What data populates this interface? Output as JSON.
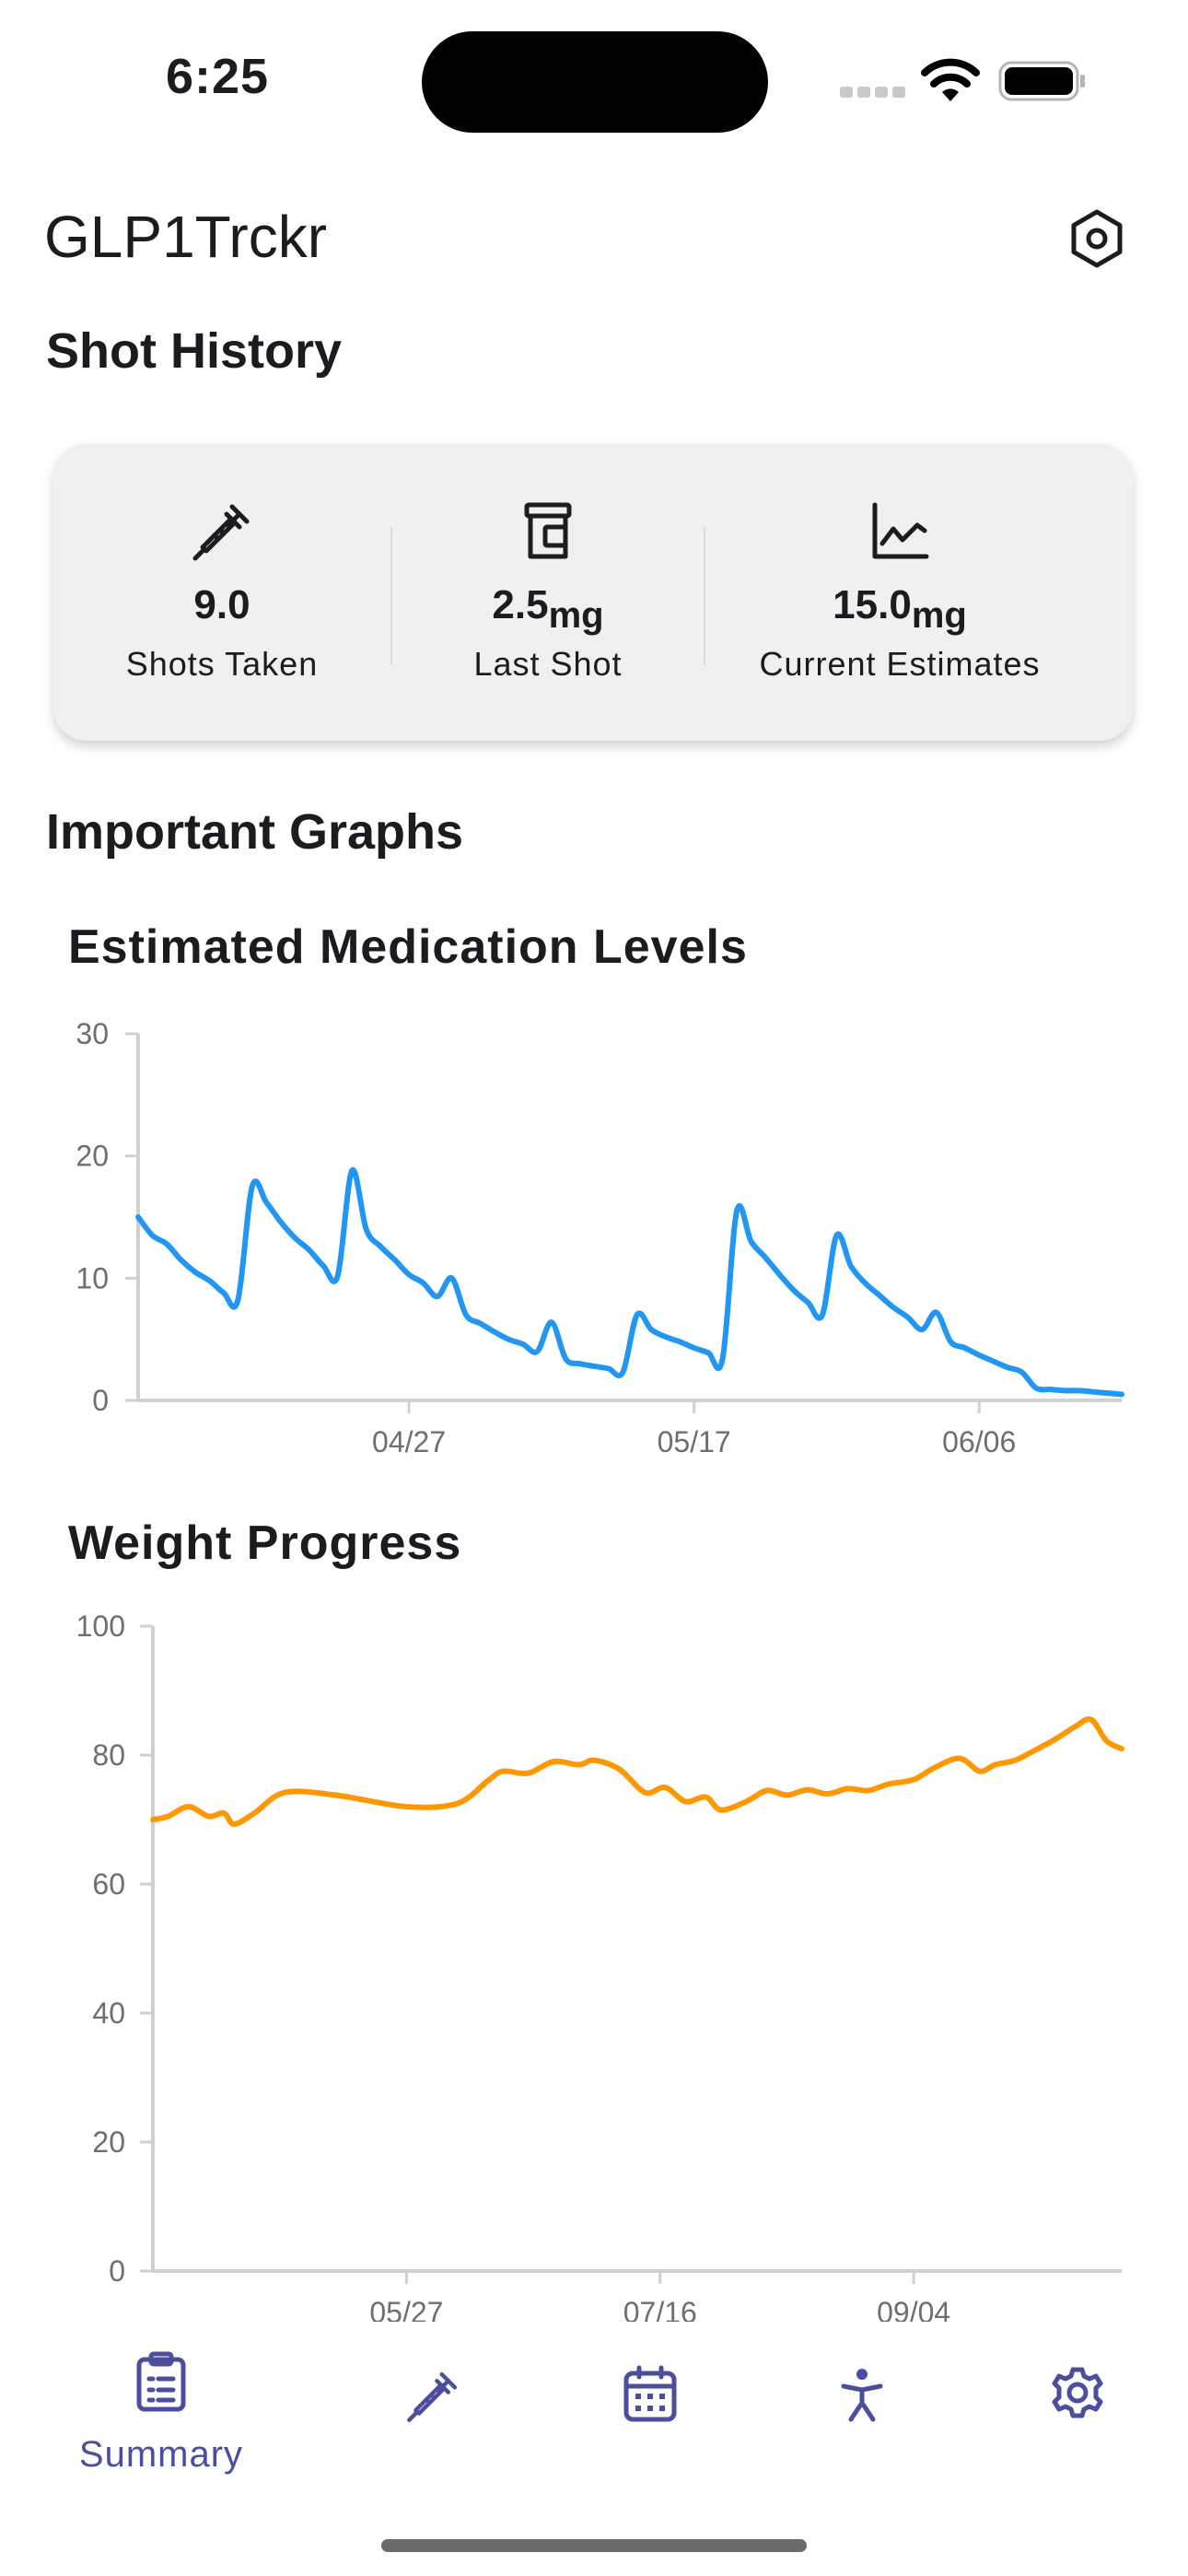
{
  "status_bar": {
    "time": "6:25"
  },
  "app_bar": {
    "title": "GLP1Trckr"
  },
  "shot_history": {
    "title": "Shot History",
    "stats": [
      {
        "icon": "syringe-icon",
        "value": "9.0",
        "unit": "",
        "label": "Shots Taken"
      },
      {
        "icon": "pill-bottle-icon",
        "value": "2.5",
        "unit": "mg",
        "label": "Last Shot"
      },
      {
        "icon": "line-chart-icon",
        "value": "15.0",
        "unit": "mg",
        "label": "Current Estimates"
      }
    ]
  },
  "graphs_section": {
    "title": "Important Graphs"
  },
  "colors": {
    "medication_line": "#2196f3",
    "weight_line": "#ff9800",
    "nav_accent": "#4b4e9c"
  },
  "chart_data": [
    {
      "type": "line",
      "title": "Estimated Medication Levels",
      "x_ticks": [
        "04/27",
        "05/17",
        "06/06"
      ],
      "y_ticks": [
        0,
        10,
        20,
        30
      ],
      "ylim": [
        0,
        30
      ],
      "xlim": [
        "04/08",
        "06/16"
      ],
      "grid": false,
      "series": [
        {
          "color": "#2196f3",
          "points": [
            [
              "04/08",
              15.0
            ],
            [
              "04/09",
              13.5
            ],
            [
              "04/10",
              12.8
            ],
            [
              "04/11",
              11.5
            ],
            [
              "04/12",
              10.5
            ],
            [
              "04/13",
              9.8
            ],
            [
              "04/14",
              8.8
            ],
            [
              "04/15",
              8.2
            ],
            [
              "04/16",
              17.5
            ],
            [
              "04/17",
              16.2
            ],
            [
              "04/18",
              14.6
            ],
            [
              "04/19",
              13.3
            ],
            [
              "04/20",
              12.3
            ],
            [
              "04/21",
              11.0
            ],
            [
              "04/22",
              10.2
            ],
            [
              "04/23",
              18.8
            ],
            [
              "04/24",
              14.0
            ],
            [
              "04/25",
              12.6
            ],
            [
              "04/26",
              11.5
            ],
            [
              "04/27",
              10.3
            ],
            [
              "04/28",
              9.6
            ],
            [
              "04/29",
              8.5
            ],
            [
              "04/30",
              10.0
            ],
            [
              "05/01",
              7.0
            ],
            [
              "05/02",
              6.3
            ],
            [
              "05/03",
              5.6
            ],
            [
              "05/04",
              5.0
            ],
            [
              "05/05",
              4.6
            ],
            [
              "05/06",
              4.0
            ],
            [
              "05/07",
              6.4
            ],
            [
              "05/08",
              3.4
            ],
            [
              "05/09",
              3.0
            ],
            [
              "05/10",
              2.8
            ],
            [
              "05/11",
              2.6
            ],
            [
              "05/12",
              2.3
            ],
            [
              "05/13",
              7.0
            ],
            [
              "05/14",
              5.8
            ],
            [
              "05/15",
              5.2
            ],
            [
              "05/16",
              4.8
            ],
            [
              "05/17",
              4.3
            ],
            [
              "05/18",
              3.9
            ],
            [
              "05/19",
              3.4
            ],
            [
              "05/20",
              15.5
            ],
            [
              "05/21",
              13.0
            ],
            [
              "05/22",
              11.7
            ],
            [
              "05/23",
              10.3
            ],
            [
              "05/24",
              9.0
            ],
            [
              "05/25",
              8.0
            ],
            [
              "05/26",
              7.0
            ],
            [
              "05/27",
              13.5
            ],
            [
              "05/28",
              11.0
            ],
            [
              "05/29",
              9.6
            ],
            [
              "05/30",
              8.6
            ],
            [
              "05/31",
              7.6
            ],
            [
              "06/01",
              6.8
            ],
            [
              "06/02",
              5.8
            ],
            [
              "06/03",
              7.2
            ],
            [
              "06/04",
              4.8
            ],
            [
              "06/05",
              4.3
            ],
            [
              "06/06",
              3.7
            ],
            [
              "06/07",
              3.2
            ],
            [
              "06/08",
              2.7
            ],
            [
              "06/09",
              2.3
            ],
            [
              "06/10",
              1.0
            ],
            [
              "06/11",
              0.9
            ],
            [
              "06/12",
              0.8
            ],
            [
              "06/13",
              0.8
            ],
            [
              "06/14",
              0.7
            ],
            [
              "06/15",
              0.6
            ],
            [
              "06/16",
              0.5
            ]
          ]
        }
      ]
    },
    {
      "type": "line",
      "title": "Weight Progress",
      "x_ticks": [
        "05/27",
        "07/16",
        "09/04"
      ],
      "y_ticks": [
        0,
        20,
        40,
        60,
        80,
        100
      ],
      "ylim": [
        0,
        100
      ],
      "xlim": [
        "04/07",
        "10/15"
      ],
      "grid": false,
      "series": [
        {
          "color": "#ff9800",
          "points": [
            [
              "04/07",
              70.0
            ],
            [
              "04/10",
              70.5
            ],
            [
              "04/14",
              72.0
            ],
            [
              "04/18",
              70.5
            ],
            [
              "04/21",
              71.0
            ],
            [
              "04/23",
              69.3
            ],
            [
              "04/27",
              71.0
            ],
            [
              "05/03",
              74.2
            ],
            [
              "05/13",
              73.8
            ],
            [
              "05/27",
              72.0
            ],
            [
              "06/06",
              72.5
            ],
            [
              "06/12",
              76.0
            ],
            [
              "06/15",
              77.5
            ],
            [
              "06/20",
              77.2
            ],
            [
              "06/25",
              79.0
            ],
            [
              "06/30",
              78.5
            ],
            [
              "07/03",
              79.2
            ],
            [
              "07/08",
              77.8
            ],
            [
              "07/13",
              74.2
            ],
            [
              "07/17",
              75.0
            ],
            [
              "07/21",
              72.8
            ],
            [
              "07/25",
              73.5
            ],
            [
              "07/28",
              71.5
            ],
            [
              "08/02",
              72.8
            ],
            [
              "08/06",
              74.5
            ],
            [
              "08/10",
              73.8
            ],
            [
              "08/14",
              74.6
            ],
            [
              "08/18",
              74.0
            ],
            [
              "08/22",
              74.8
            ],
            [
              "08/26",
              74.5
            ],
            [
              "08/30",
              75.5
            ],
            [
              "09/04",
              76.2
            ],
            [
              "09/08",
              78.0
            ],
            [
              "09/13",
              79.5
            ],
            [
              "09/17",
              77.5
            ],
            [
              "09/20",
              78.5
            ],
            [
              "09/24",
              79.2
            ],
            [
              "09/28",
              80.8
            ],
            [
              "10/02",
              82.5
            ],
            [
              "10/06",
              84.5
            ],
            [
              "10/09",
              85.5
            ],
            [
              "10/12",
              82.2
            ],
            [
              "10/15",
              81.0
            ]
          ]
        }
      ]
    }
  ],
  "bottom_nav": [
    {
      "id": "summary",
      "label": "Summary",
      "icon": "clipboard-icon",
      "active": true
    },
    {
      "id": "shots",
      "label": "",
      "icon": "syringe-icon",
      "active": false
    },
    {
      "id": "calendar",
      "label": "",
      "icon": "calendar-icon",
      "active": false
    },
    {
      "id": "activity",
      "label": "",
      "icon": "person-icon",
      "active": false
    },
    {
      "id": "settings",
      "label": "",
      "icon": "gear-icon",
      "active": false
    }
  ]
}
